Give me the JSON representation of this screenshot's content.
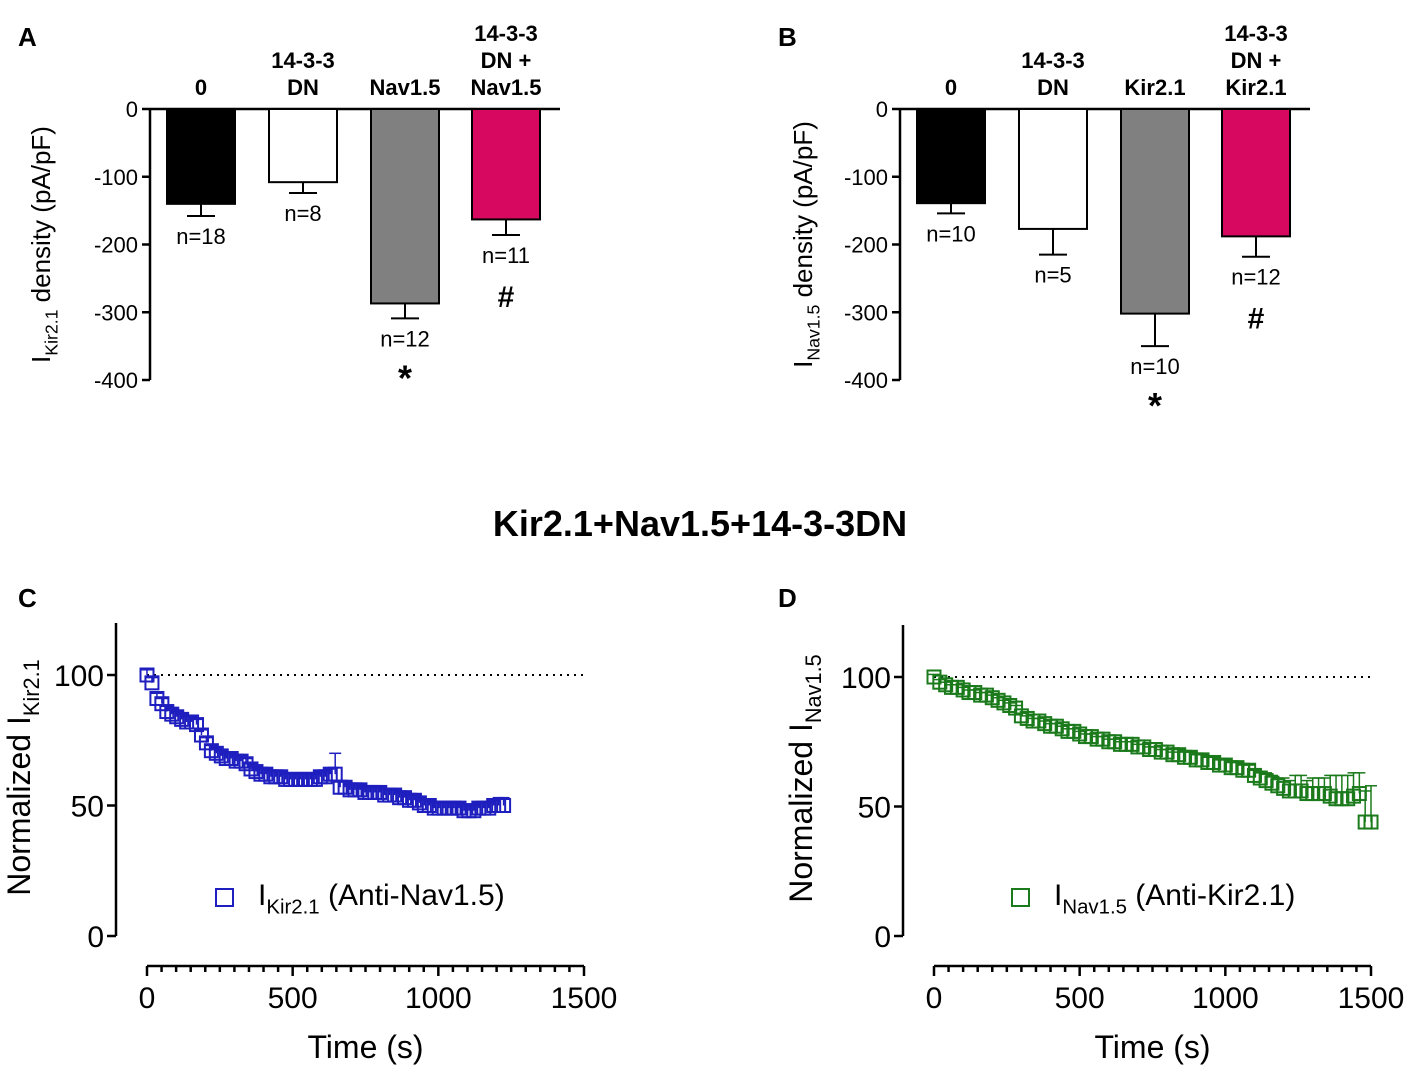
{
  "figure_title": "Kir2.1+Nav1.5+14-3-3DN",
  "chart_data": [
    {
      "panel": "A",
      "type": "bar",
      "ylabel": {
        "main": "I",
        "sub": "Kir2.1",
        "rest": " density (pA/pF)"
      },
      "ylim": [
        -400,
        0
      ],
      "yticks": [
        0,
        -100,
        -200,
        -300,
        -400
      ],
      "ytick_labels": [
        "0",
        "-100",
        "-200",
        "-300",
        "-400"
      ],
      "categories": [
        [
          "0"
        ],
        [
          "14-3-3",
          "DN"
        ],
        [
          "Nav1.5"
        ],
        [
          "14-3-3",
          "DN +",
          "Nav1.5"
        ]
      ],
      "values": [
        -140,
        -108,
        -287,
        -163
      ],
      "errors": [
        18,
        16,
        22,
        23
      ],
      "colors": [
        "#000000",
        "#ffffff",
        "#808080",
        "#d6085f"
      ],
      "n_labels": [
        "n=18",
        "n=8",
        "n=12",
        "n=11"
      ],
      "significance": [
        "",
        "",
        "*",
        "#"
      ]
    },
    {
      "panel": "B",
      "type": "bar",
      "ylabel": {
        "main": "I",
        "sub": "Nav1.5",
        "rest": " density (pA/pF)"
      },
      "ylim": [
        -400,
        0
      ],
      "yticks": [
        0,
        -100,
        -200,
        -300,
        -400
      ],
      "ytick_labels": [
        "0",
        "-100",
        "-200",
        "-300",
        "-400"
      ],
      "categories": [
        [
          "0"
        ],
        [
          "14-3-3",
          "DN"
        ],
        [
          "Kir2.1"
        ],
        [
          "14-3-3",
          "DN +",
          "Kir2.1"
        ]
      ],
      "values": [
        -139,
        -177,
        -302,
        -188
      ],
      "errors": [
        15,
        38,
        48,
        30
      ],
      "colors": [
        "#000000",
        "#ffffff",
        "#808080",
        "#d6085f"
      ],
      "n_labels": [
        "n=10",
        "n=5",
        "n=10",
        "n=12"
      ],
      "significance": [
        "",
        "",
        "*",
        "#"
      ]
    },
    {
      "panel": "C",
      "type": "scatter",
      "color": "#1f1fbf",
      "xlabel": "Time (s)",
      "ylabel": {
        "main": "Normalized I",
        "sub": "Kir2.1"
      },
      "xlim": [
        0,
        1500
      ],
      "ylim": [
        0,
        100
      ],
      "xticks": [
        0,
        500,
        1000,
        1500
      ],
      "yticks": [
        0,
        50,
        100
      ],
      "reference_line": 100,
      "legend": {
        "main": "I",
        "sub": "Kir2.1",
        "rest": " (Anti-Nav1.5)"
      },
      "x": [
        0,
        17,
        34,
        51,
        68,
        85,
        102,
        119,
        136,
        153,
        170,
        187,
        204,
        221,
        238,
        255,
        272,
        289,
        306,
        323,
        340,
        357,
        374,
        391,
        408,
        425,
        442,
        459,
        476,
        493,
        510,
        527,
        544,
        561,
        578,
        595,
        612,
        629,
        646,
        663,
        680,
        697,
        714,
        731,
        748,
        765,
        782,
        799,
        816,
        833,
        850,
        867,
        884,
        901,
        918,
        935,
        952,
        969,
        986,
        1003,
        1020,
        1037,
        1054,
        1071,
        1088,
        1105,
        1122,
        1139,
        1156,
        1173,
        1190,
        1207,
        1224
      ],
      "y": [
        100,
        97,
        91,
        89,
        86,
        85,
        84,
        83,
        82,
        82,
        81,
        77,
        74,
        71,
        70,
        69,
        68,
        68,
        67,
        67,
        66,
        64,
        63,
        62,
        62,
        61,
        61,
        61,
        60,
        60,
        60,
        60,
        60,
        60,
        60,
        61,
        61,
        62,
        62,
        57,
        57,
        56,
        56,
        56,
        55,
        55,
        55,
        55,
        54,
        54,
        54,
        53,
        53,
        52,
        52,
        51,
        50,
        50,
        49,
        49,
        49,
        49,
        49,
        49,
        48,
        48,
        48,
        49,
        49,
        49,
        50,
        50,
        50
      ],
      "err": [
        2,
        2,
        2,
        2,
        2,
        2,
        2,
        2,
        2,
        2,
        2,
        2,
        2,
        2,
        2,
        2,
        2,
        2,
        2,
        2,
        2,
        2,
        2,
        2,
        2,
        2,
        2,
        2,
        2,
        2,
        2,
        2,
        2,
        2,
        2,
        2,
        2,
        2,
        8,
        2,
        2,
        2,
        2,
        2,
        2,
        2,
        2,
        2,
        2,
        2,
        2,
        2,
        2,
        2,
        2,
        2,
        2,
        2,
        2,
        2,
        2,
        2,
        2,
        2,
        2,
        2,
        2,
        2,
        2,
        2,
        2,
        3,
        3
      ]
    },
    {
      "panel": "D",
      "type": "scatter",
      "color": "#1b7a1b",
      "xlabel": "Time (s)",
      "ylabel": {
        "main": "Normalized I",
        "sub": "Nav1.5"
      },
      "xlim": [
        0,
        1500
      ],
      "ylim": [
        0,
        100
      ],
      "xticks": [
        0,
        500,
        1000,
        1500
      ],
      "yticks": [
        0,
        50,
        100
      ],
      "reference_line": 100,
      "legend": {
        "main": "I",
        "sub": "Nav1.5",
        "rest": " (Anti-Kir2.1)"
      },
      "x": [
        0,
        20,
        40,
        60,
        80,
        100,
        120,
        140,
        160,
        180,
        200,
        220,
        240,
        260,
        280,
        300,
        320,
        340,
        360,
        380,
        400,
        420,
        440,
        460,
        480,
        500,
        520,
        540,
        560,
        580,
        600,
        620,
        640,
        660,
        680,
        700,
        720,
        740,
        760,
        780,
        800,
        820,
        840,
        860,
        880,
        900,
        920,
        940,
        960,
        980,
        1000,
        1020,
        1040,
        1060,
        1080,
        1100,
        1120,
        1140,
        1160,
        1180,
        1200,
        1220,
        1240,
        1260,
        1280,
        1300,
        1320,
        1340,
        1360,
        1380,
        1400,
        1420,
        1440,
        1460,
        1480,
        1500
      ],
      "y": [
        100,
        98,
        97,
        96,
        96,
        95,
        94,
        94,
        93,
        93,
        92,
        91,
        90,
        89,
        88,
        85,
        84,
        83,
        83,
        82,
        81,
        81,
        80,
        79,
        79,
        78,
        77,
        77,
        76,
        76,
        75,
        75,
        74,
        74,
        74,
        73,
        73,
        72,
        72,
        71,
        71,
        70,
        70,
        69,
        69,
        68,
        68,
        67,
        67,
        66,
        66,
        65,
        65,
        64,
        64,
        62,
        61,
        60,
        59,
        58,
        57,
        56,
        56,
        56,
        55,
        55,
        55,
        55,
        54,
        53,
        53,
        53,
        54,
        55,
        44,
        44
      ],
      "err": [
        1,
        1,
        1,
        1,
        1,
        1,
        1,
        1,
        1,
        1,
        1,
        1,
        1,
        1,
        1,
        1,
        1,
        1,
        1,
        1,
        1,
        1,
        1,
        1,
        1,
        1,
        1,
        1,
        1,
        1,
        1,
        1,
        1,
        1,
        1,
        1,
        1,
        1,
        1,
        1,
        1,
        1,
        2,
        2,
        2,
        2,
        2,
        2,
        2,
        2,
        2,
        2,
        2,
        2,
        2,
        2,
        2,
        3,
        3,
        3,
        4,
        4,
        6,
        6,
        5,
        6,
        6,
        6,
        8,
        9,
        9,
        9,
        9,
        8,
        12,
        14
      ]
    }
  ]
}
